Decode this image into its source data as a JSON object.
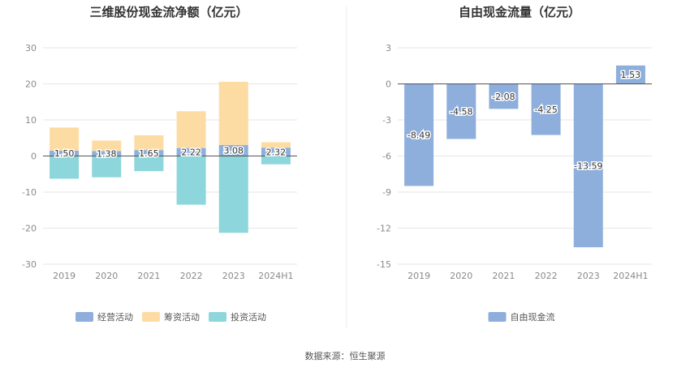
{
  "source": "数据来源：恒生聚源",
  "chart_data": [
    {
      "type": "bar",
      "stacked": true,
      "title": "三维股份现金流净额（亿元）",
      "categories": [
        "2019",
        "2020",
        "2021",
        "2022",
        "2023",
        "2024H1"
      ],
      "ylim": [
        -30,
        30
      ],
      "yticks": [
        30,
        20,
        10,
        0,
        -10,
        -20,
        -30
      ],
      "grid": true,
      "legend_position": "bottom",
      "series": [
        {
          "name": "经营活动",
          "color": "#8eaedc",
          "values": [
            1.5,
            1.38,
            1.65,
            2.22,
            3.08,
            2.32
          ],
          "labels": [
            "1.50",
            "1.38",
            "1.65",
            "2.22",
            "3.08",
            "2.32"
          ]
        },
        {
          "name": "筹资活动",
          "color": "#fddca3",
          "values": [
            6.4,
            2.9,
            4.1,
            10.2,
            17.5,
            1.5
          ]
        },
        {
          "name": "投资活动",
          "color": "#8dd6db",
          "values": [
            -6.3,
            -5.9,
            -4.2,
            -13.5,
            -21.3,
            -2.3
          ]
        }
      ]
    },
    {
      "type": "bar",
      "title": "自由现金流量（亿元）",
      "categories": [
        "2019",
        "2020",
        "2021",
        "2022",
        "2023",
        "2024H1"
      ],
      "ylim": [
        -15,
        3
      ],
      "yticks": [
        3,
        0,
        -3,
        -6,
        -9,
        -12,
        -15
      ],
      "grid": true,
      "legend_position": "bottom",
      "series": [
        {
          "name": "自由现金流",
          "color": "#8eaedc",
          "values": [
            -8.49,
            -4.58,
            -2.08,
            -4.25,
            -13.59,
            1.53
          ],
          "labels": [
            "-8.49",
            "-4.58",
            "-2.08",
            "-4.25",
            "-13.59",
            "1.53"
          ]
        }
      ]
    }
  ]
}
